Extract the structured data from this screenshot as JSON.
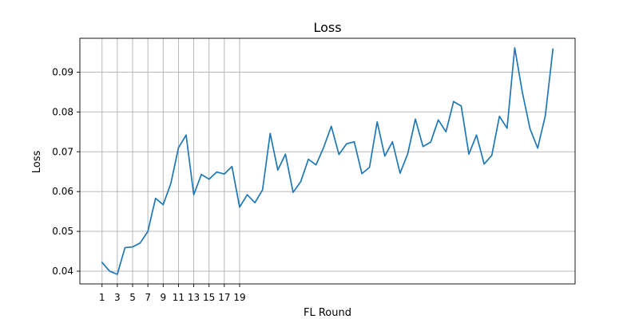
{
  "chart_data": {
    "type": "line",
    "title": "Loss",
    "xlabel": "FL Round",
    "ylabel": "Loss",
    "xlim": [
      -1.9,
      62.9
    ],
    "ylim": [
      0.0368,
      0.0985
    ],
    "grid": true,
    "x_ticks": [
      1,
      3,
      5,
      7,
      9,
      11,
      13,
      15,
      17,
      19
    ],
    "y_ticks": [
      0.04,
      0.05,
      0.06,
      0.07,
      0.08,
      0.09
    ],
    "y_tick_labels": [
      "0.04",
      "0.05",
      "0.06",
      "0.07",
      "0.08",
      "0.09"
    ],
    "series": [
      {
        "color": "#1f77b4",
        "x": [
          1,
          2,
          3,
          4,
          5,
          6,
          7,
          8,
          9,
          10,
          11,
          12,
          13,
          14,
          15,
          16,
          17,
          18,
          19,
          20,
          21,
          22,
          23,
          24,
          25,
          26,
          27,
          28,
          29,
          30,
          31,
          32,
          33,
          34,
          35,
          36,
          37,
          38,
          39,
          40,
          41,
          42,
          43,
          44,
          45,
          46,
          47,
          48,
          49,
          50,
          51,
          52,
          53,
          54,
          55,
          56,
          57,
          58,
          59,
          60
        ],
        "values": [
          0.0422,
          0.04,
          0.0392,
          0.0459,
          0.0461,
          0.0471,
          0.05,
          0.0583,
          0.0567,
          0.062,
          0.071,
          0.0742,
          0.0592,
          0.0643,
          0.0631,
          0.0649,
          0.0644,
          0.0663,
          0.0561,
          0.0592,
          0.0572,
          0.0604,
          0.0746,
          0.0654,
          0.0694,
          0.0598,
          0.0625,
          0.0681,
          0.0667,
          0.0711,
          0.0764,
          0.0693,
          0.072,
          0.0725,
          0.0645,
          0.0661,
          0.0775,
          0.0689,
          0.0725,
          0.0646,
          0.0695,
          0.0782,
          0.0713,
          0.0724,
          0.078,
          0.075,
          0.0826,
          0.0815,
          0.0694,
          0.0742,
          0.0669,
          0.0691,
          0.0789,
          0.0759,
          0.0961,
          0.0849,
          0.0758,
          0.0709,
          0.079,
          0.0958
        ]
      }
    ]
  }
}
